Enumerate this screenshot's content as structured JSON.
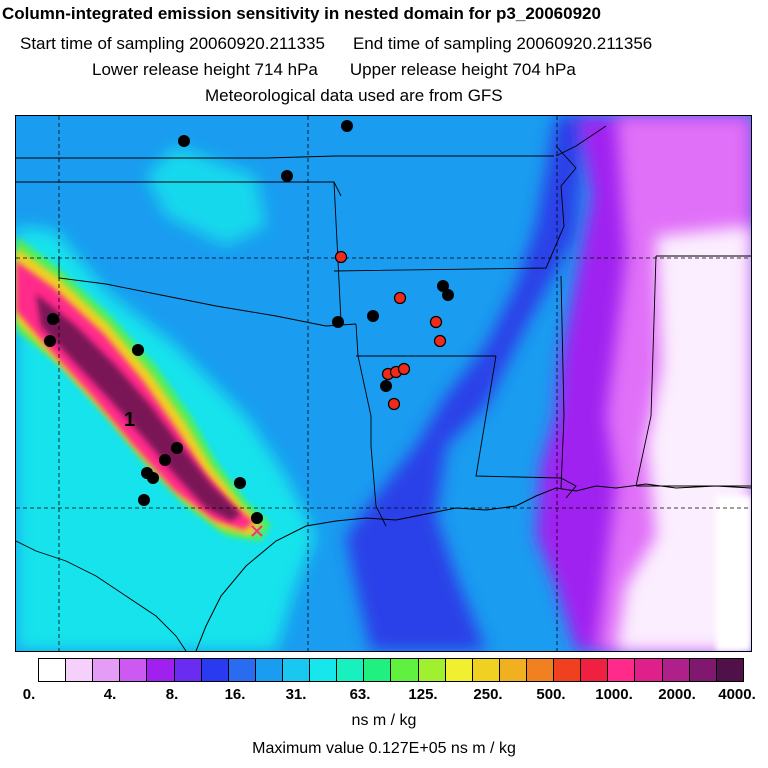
{
  "header": {
    "title": "Column-integrated emission sensitivity in nested domain for p3_20060920",
    "start_label": "Start time of sampling 20060920.211335",
    "end_label": "End time of sampling 20060920.211356",
    "lower_label": "Lower release height  714 hPa",
    "upper_label": "Upper release height  704 hPa",
    "met_label": "Meteorological data used are from GFS"
  },
  "map": {
    "plume_label": "1",
    "colors": {
      "background": "#1a9cf0",
      "cyan": "#17e7ec",
      "deep_blue": "#2060e8",
      "violet": "#a020f0",
      "magenta_light": "#e070f8",
      "white_light": "#ffffff",
      "plume_outer": "#f0d020",
      "plume_mid": "#ff2a8a",
      "plume_core": "#7a1256",
      "dot_black": "#000000",
      "dot_red": "#ee2a1a"
    }
  },
  "colorbar": {
    "colors": [
      "#ffffff",
      "#f4d0fa",
      "#e49cf7",
      "#cc5af2",
      "#a020f0",
      "#6a2cf0",
      "#2a3af0",
      "#2a6cf0",
      "#1a9cf0",
      "#18c8f0",
      "#17e7ec",
      "#18f0c0",
      "#20f080",
      "#60f040",
      "#a0f030",
      "#f0f030",
      "#f0d020",
      "#f0b020",
      "#f08020",
      "#f04020",
      "#f02040",
      "#ff2a8a",
      "#e0208a",
      "#b0208a",
      "#801870",
      "#501048"
    ],
    "tick_labels": [
      "0.",
      "4.",
      "8.",
      "16.",
      "31.",
      "63.",
      "125.",
      "250.",
      "500.",
      "1000.",
      "2000.",
      "4000."
    ],
    "units": "ns m / kg",
    "max_value": "Maximum value  0.127E+05 ns m / kg"
  }
}
